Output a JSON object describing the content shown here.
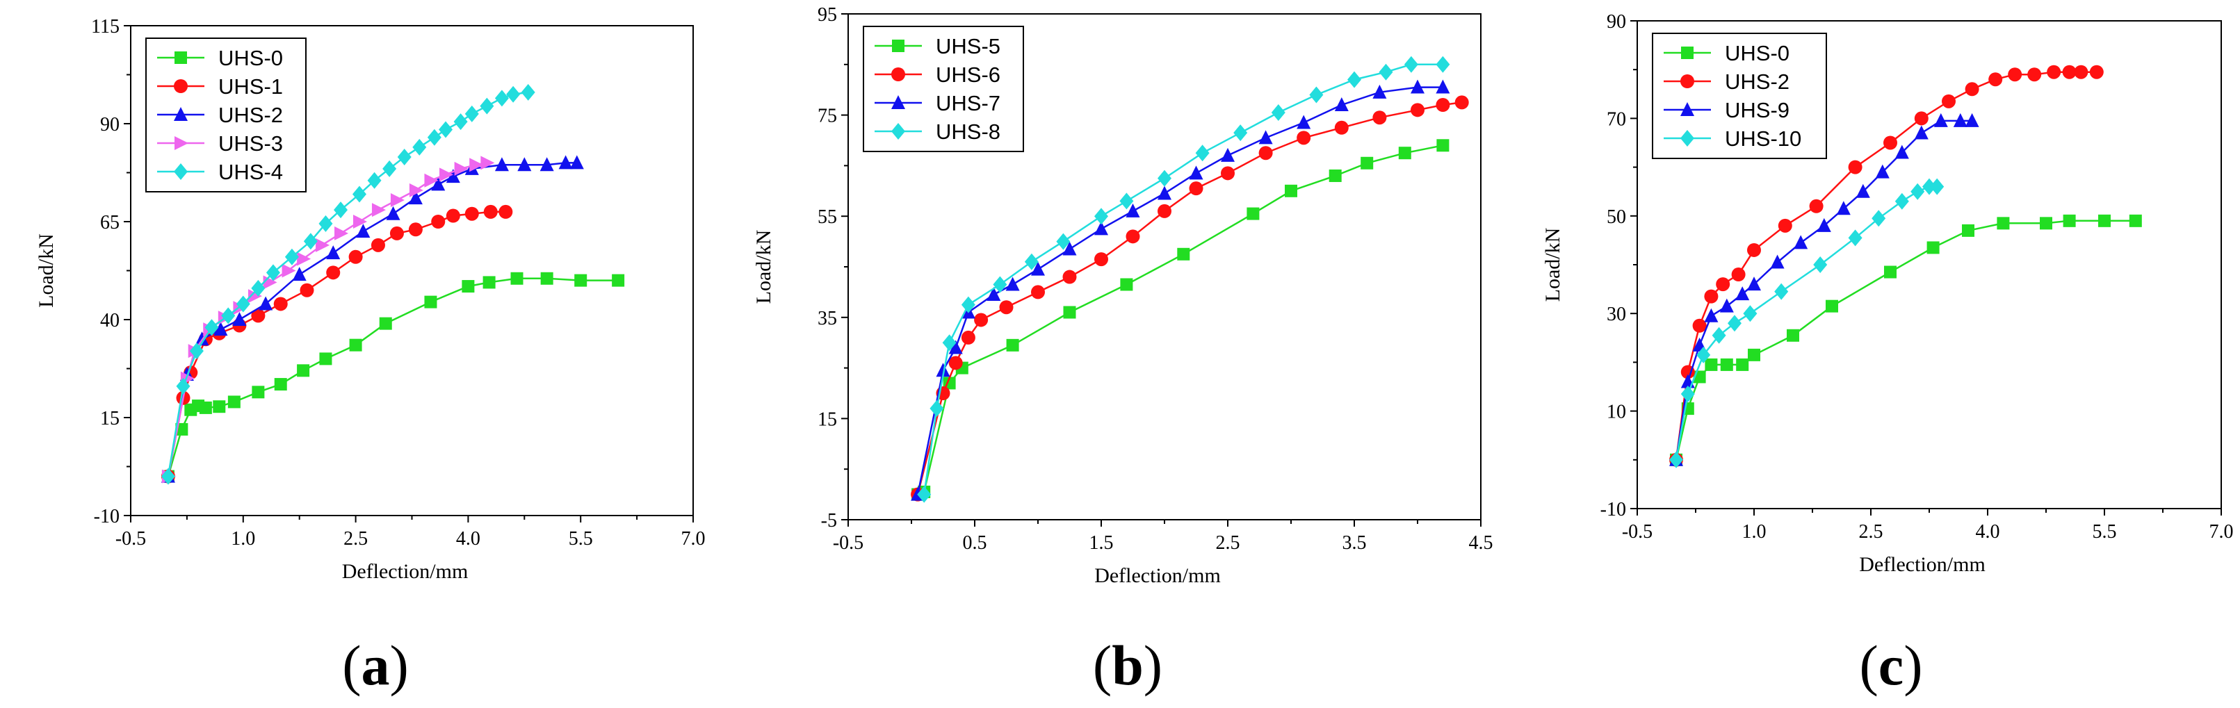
{
  "chart_data": [
    {
      "type": "line",
      "panel_label": "a",
      "title": "",
      "xlabel": "Deflection/mm",
      "ylabel": "Load/kN",
      "xlim": [
        -0.5,
        7.0
      ],
      "ylim": [
        -10,
        115
      ],
      "xticks": [
        -0.5,
        1.0,
        2.5,
        4.0,
        5.5,
        7.0
      ],
      "xtick_labels": [
        "-0.5",
        "1.0",
        "2.5",
        "4.0",
        "5.5",
        "7.0"
      ],
      "yticks": [
        -10,
        15,
        40,
        65,
        90,
        115
      ],
      "ytick_labels": [
        "-10",
        "15",
        "40",
        "65",
        "90",
        "115"
      ],
      "legend_position": "top-left",
      "series": [
        {
          "name": "UHS-0",
          "color": "#22dd22",
          "marker": "square",
          "x": [
            0,
            0.18,
            0.3,
            0.4,
            0.5,
            0.68,
            0.88,
            1.2,
            1.5,
            1.8,
            2.1,
            2.5,
            2.9,
            3.5,
            4.0,
            4.28,
            4.65,
            5.05,
            5.5,
            6.0
          ],
          "y": [
            0,
            12,
            17,
            18,
            17.5,
            17.8,
            19,
            21.5,
            23.5,
            27,
            30,
            33.5,
            39,
            44.5,
            48.5,
            49.5,
            50.5,
            50.5,
            50,
            50
          ]
        },
        {
          "name": "UHS-1",
          "color": "#ff1111",
          "marker": "circle",
          "x": [
            0,
            0.2,
            0.3,
            0.5,
            0.68,
            0.95,
            1.2,
            1.5,
            1.85,
            2.2,
            2.5,
            2.8,
            3.05,
            3.3,
            3.6,
            3.8,
            4.05,
            4.3,
            4.5
          ],
          "y": [
            0,
            20,
            26.5,
            35,
            36.5,
            38.5,
            41,
            44,
            47.5,
            52,
            56,
            59,
            62,
            63,
            65,
            66.5,
            67,
            67.5,
            67.5
          ]
        },
        {
          "name": "UHS-2",
          "color": "#1111ee",
          "marker": "triangle",
          "x": [
            0,
            0.25,
            0.45,
            0.7,
            0.95,
            1.3,
            1.75,
            2.2,
            2.6,
            3.0,
            3.3,
            3.6,
            3.8,
            4.05,
            4.45,
            4.75,
            5.05,
            5.3,
            5.45
          ],
          "y": [
            0,
            26,
            35,
            37.5,
            40,
            44,
            51.5,
            57,
            62.5,
            67,
            71,
            74.5,
            76.5,
            78.5,
            79.5,
            79.5,
            79.5,
            80,
            80
          ]
        },
        {
          "name": "UHS-3",
          "color": "#ee66ee",
          "marker": "triangle-right",
          "x": [
            0,
            0.25,
            0.35,
            0.55,
            0.75,
            0.95,
            1.15,
            1.35,
            1.6,
            1.8,
            2.05,
            2.3,
            2.55,
            2.8,
            3.05,
            3.3,
            3.5,
            3.7,
            3.9,
            4.1,
            4.25
          ],
          "y": [
            0,
            25,
            32,
            37.5,
            40.5,
            43,
            46,
            49.5,
            52.5,
            55.5,
            59,
            62,
            65,
            68,
            70.5,
            73,
            75.5,
            77,
            78.5,
            79.5,
            80
          ]
        },
        {
          "name": "UHS-4",
          "color": "#22dddd",
          "marker": "diamond",
          "x": [
            0,
            0.2,
            0.38,
            0.58,
            0.8,
            1.0,
            1.2,
            1.4,
            1.65,
            1.9,
            2.1,
            2.3,
            2.55,
            2.75,
            2.95,
            3.15,
            3.35,
            3.55,
            3.7,
            3.9,
            4.05,
            4.25,
            4.45,
            4.6,
            4.8
          ],
          "y": [
            0,
            23,
            32,
            38,
            41,
            44,
            48,
            52,
            56,
            60,
            64.5,
            68,
            72,
            75.5,
            78.5,
            81.5,
            84,
            86.5,
            88.5,
            90.5,
            92.5,
            94.5,
            96.5,
            97.5,
            98
          ]
        }
      ]
    },
    {
      "type": "line",
      "panel_label": "b",
      "title": "",
      "xlabel": "Deflection/mm",
      "ylabel": "Load/kN",
      "xlim": [
        -0.5,
        4.5
      ],
      "ylim": [
        -5,
        95
      ],
      "xticks": [
        -0.5,
        0.5,
        1.5,
        2.5,
        3.5,
        4.5
      ],
      "xtick_labels": [
        "-0.5",
        "0.5",
        "1.5",
        "2.5",
        "3.5",
        "4.5"
      ],
      "yticks": [
        -5,
        15,
        35,
        55,
        75,
        95
      ],
      "ytick_labels": [
        "-5",
        "15",
        "35",
        "55",
        "75",
        "95"
      ],
      "legend_position": "top-left",
      "series": [
        {
          "name": "UHS-5",
          "color": "#22dd22",
          "marker": "square",
          "x": [
            0.05,
            0.1,
            0.3,
            0.4,
            0.8,
            1.25,
            1.7,
            2.15,
            2.7,
            3.0,
            3.35,
            3.6,
            3.9,
            4.2
          ],
          "y": [
            0,
            0.5,
            22,
            25,
            29.5,
            36,
            41.5,
            47.5,
            55.5,
            60,
            63,
            65.5,
            67.5,
            69
          ]
        },
        {
          "name": "UHS-6",
          "color": "#ff1111",
          "marker": "circle",
          "x": [
            0.05,
            0.25,
            0.35,
            0.45,
            0.55,
            0.75,
            1.0,
            1.25,
            1.5,
            1.75,
            2.0,
            2.25,
            2.5,
            2.8,
            3.1,
            3.4,
            3.7,
            4.0,
            4.2,
            4.35
          ],
          "y": [
            0,
            20,
            26,
            31,
            34.5,
            37,
            40,
            43,
            46.5,
            51,
            56,
            60.5,
            63.5,
            67.5,
            70.5,
            72.5,
            74.5,
            76,
            77,
            77.5
          ]
        },
        {
          "name": "UHS-7",
          "color": "#1111ee",
          "marker": "triangle",
          "x": [
            0.05,
            0.25,
            0.35,
            0.45,
            0.65,
            0.8,
            1.0,
            1.25,
            1.5,
            1.75,
            2.0,
            2.25,
            2.5,
            2.8,
            3.1,
            3.4,
            3.7,
            4.0,
            4.2
          ],
          "y": [
            0,
            24.5,
            29,
            36,
            39.5,
            41.5,
            44.5,
            48.5,
            52.5,
            56,
            59.5,
            63.5,
            67,
            70.5,
            73.5,
            77,
            79.5,
            80.5,
            80.5
          ]
        },
        {
          "name": "UHS-8",
          "color": "#22dddd",
          "marker": "diamond",
          "x": [
            0.1,
            0.2,
            0.3,
            0.45,
            0.7,
            0.95,
            1.2,
            1.5,
            1.7,
            2.0,
            2.3,
            2.6,
            2.9,
            3.2,
            3.5,
            3.75,
            3.95,
            4.2
          ],
          "y": [
            0,
            17,
            30,
            37.5,
            41.5,
            46,
            50,
            55,
            58,
            62.5,
            67.5,
            71.5,
            75.5,
            79,
            82,
            83.5,
            85,
            85
          ]
        }
      ]
    },
    {
      "type": "line",
      "panel_label": "c",
      "title": "",
      "xlabel": "Deflection/mm",
      "ylabel": "Load/kN",
      "xlim": [
        -0.5,
        7.0
      ],
      "ylim": [
        -10,
        90
      ],
      "xticks": [
        -0.5,
        1.0,
        2.5,
        4.0,
        5.5,
        7.0
      ],
      "xtick_labels": [
        "-0.5",
        "1.0",
        "2.5",
        "4.0",
        "5.5",
        "7.0"
      ],
      "yticks": [
        -10,
        10,
        30,
        50,
        70,
        90
      ],
      "ytick_labels": [
        "-10",
        "10",
        "30",
        "50",
        "70",
        "90"
      ],
      "legend_position": "top-left",
      "series": [
        {
          "name": "UHS-0",
          "color": "#22dd22",
          "marker": "square",
          "x": [
            0,
            0.15,
            0.3,
            0.45,
            0.65,
            0.85,
            1.0,
            1.5,
            2.0,
            2.75,
            3.3,
            3.75,
            4.2,
            4.75,
            5.05,
            5.5,
            5.9
          ],
          "y": [
            0,
            10.5,
            17,
            19.5,
            19.5,
            19.5,
            21.5,
            25.5,
            31.5,
            38.5,
            43.5,
            47,
            48.5,
            48.5,
            49,
            49,
            49
          ]
        },
        {
          "name": "UHS-2",
          "color": "#ff1111",
          "marker": "circle",
          "x": [
            0,
            0.15,
            0.3,
            0.45,
            0.6,
            0.8,
            1.0,
            1.4,
            1.8,
            2.3,
            2.75,
            3.15,
            3.5,
            3.8,
            4.1,
            4.35,
            4.6,
            4.85,
            5.05,
            5.2,
            5.4
          ],
          "y": [
            0,
            18,
            27.5,
            33.5,
            36,
            38,
            43,
            48,
            52,
            60,
            65,
            70,
            73.5,
            76,
            78,
            79,
            79,
            79.5,
            79.5,
            79.5,
            79.5
          ]
        },
        {
          "name": "UHS-9",
          "color": "#1111ee",
          "marker": "triangle",
          "x": [
            0,
            0.15,
            0.3,
            0.45,
            0.65,
            0.85,
            1.0,
            1.3,
            1.6,
            1.9,
            2.15,
            2.4,
            2.65,
            2.9,
            3.15,
            3.4,
            3.65,
            3.8
          ],
          "y": [
            0,
            16,
            23.5,
            29.5,
            31.5,
            34,
            36,
            40.5,
            44.5,
            48,
            51.5,
            55,
            59,
            63,
            67,
            69.5,
            69.5,
            69.5
          ]
        },
        {
          "name": "UHS-10",
          "color": "#22dddd",
          "marker": "diamond",
          "x": [
            0,
            0.15,
            0.35,
            0.55,
            0.75,
            0.95,
            1.35,
            1.85,
            2.3,
            2.6,
            2.9,
            3.1,
            3.25,
            3.35
          ],
          "y": [
            0,
            13.5,
            21.5,
            25.5,
            28,
            30,
            34.5,
            40,
            45.5,
            49.5,
            53,
            55,
            56,
            56
          ]
        }
      ]
    }
  ]
}
